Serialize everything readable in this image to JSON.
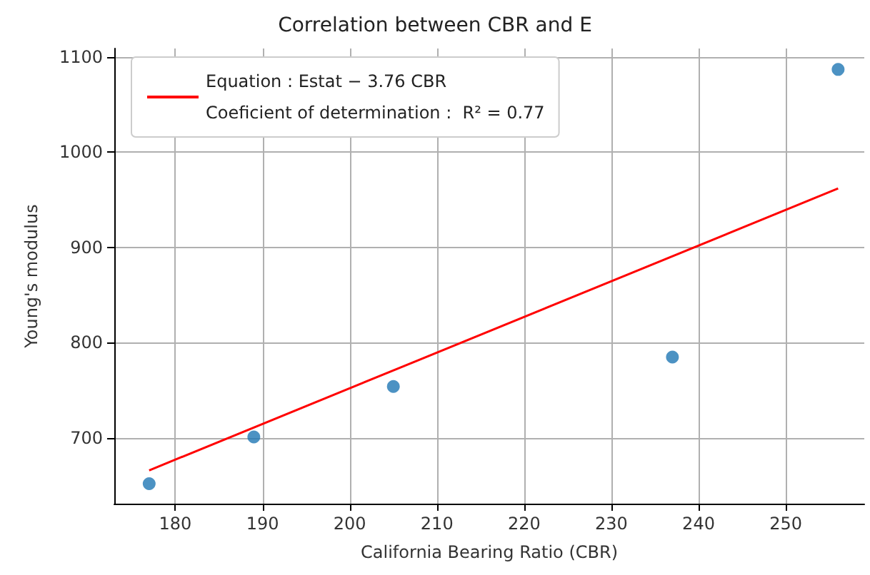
{
  "chart_data": {
    "type": "scatter",
    "title": "Correlation between CBR and E",
    "xlabel": "California Bearing Ratio (CBR)",
    "ylabel": "Young's modulus",
    "series": [
      {
        "color": "#1f77b4",
        "marker": "circle",
        "x": [
          177,
          189,
          205,
          237,
          256
        ],
        "values": [
          652,
          701,
          754,
          785,
          1087
        ]
      },
      {
        "type": "line",
        "name": "Equation : Estat − 3.76 CBR\nCoeficient of determination :  R² = 0.77",
        "color": "#ff0000",
        "marker": "none",
        "line_style": "solid",
        "x": [
          177,
          256
        ],
        "values": [
          666,
          962
        ]
      }
    ],
    "xlim": [
      173,
      259
    ],
    "xticks": [
      180,
      190,
      200,
      210,
      220,
      230,
      240,
      250
    ],
    "ylim": [
      631,
      1109
    ],
    "yticks": [
      700,
      800,
      900,
      1000,
      1100
    ],
    "grid": true,
    "legend": "top left"
  }
}
